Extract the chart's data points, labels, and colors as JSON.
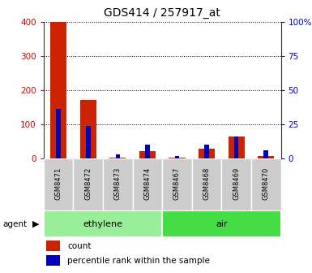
{
  "title": "GDS414 / 257917_at",
  "samples": [
    "GSM8471",
    "GSM8472",
    "GSM8473",
    "GSM8474",
    "GSM8467",
    "GSM8468",
    "GSM8469",
    "GSM8470"
  ],
  "count_values": [
    400,
    170,
    2,
    20,
    3,
    28,
    65,
    8
  ],
  "percentile_values": [
    36,
    24,
    3,
    10,
    1.5,
    10,
    16,
    6
  ],
  "groups": [
    {
      "label": "ethylene",
      "start": 0,
      "end": 4,
      "color": "#99ee99"
    },
    {
      "label": "air",
      "start": 4,
      "end": 8,
      "color": "#44dd44"
    }
  ],
  "ylim_left": [
    0,
    400
  ],
  "ylim_right": [
    0,
    100
  ],
  "yticks_left": [
    0,
    100,
    200,
    300,
    400
  ],
  "yticks_right": [
    0,
    25,
    50,
    75,
    100
  ],
  "yticklabels_right": [
    "0",
    "25",
    "50",
    "75",
    "100%"
  ],
  "left_tick_color": "#cc0000",
  "right_tick_color": "#0000cc",
  "bar_color_count": "#cc2200",
  "bar_color_percentile": "#0000bb",
  "background_color": "#ffffff",
  "plot_bg_color": "#ffffff",
  "agent_label": "agent",
  "legend_count": "count",
  "legend_percentile": "percentile rank within the sample",
  "grid_color": "#000000",
  "xticklabel_bg": "#cccccc"
}
